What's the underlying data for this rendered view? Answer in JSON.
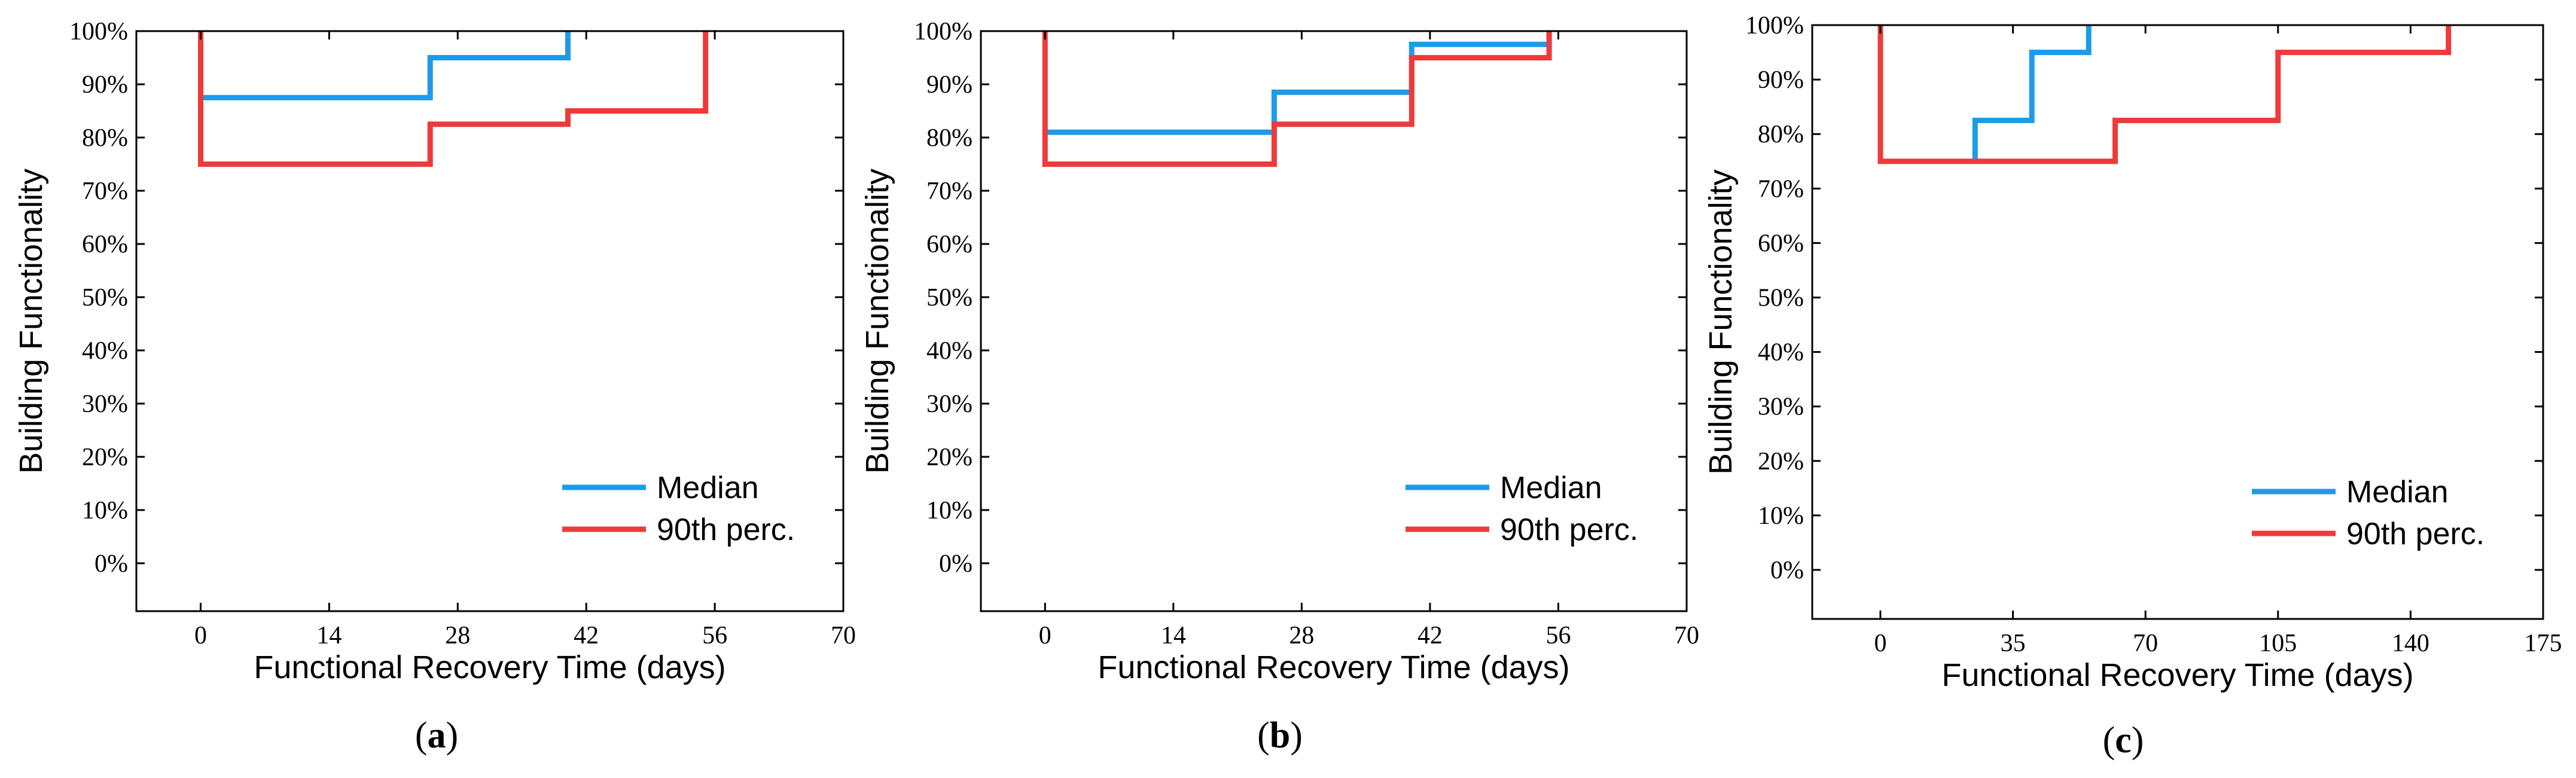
{
  "chart_data": [
    {
      "type": "line",
      "panel_label": "(a)",
      "panel_letter": "a",
      "xlabel": "Functional Recovery Time (days)",
      "ylabel": "Building Functionality",
      "xlim": [
        -7,
        70
      ],
      "ylim": [
        -9,
        100
      ],
      "xticks": [
        "0",
        "14",
        "28",
        "42",
        "56",
        "70"
      ],
      "xtick_values": [
        0,
        14,
        28,
        42,
        56,
        70
      ],
      "yticks": [
        "0%",
        "10%",
        "20%",
        "30%",
        "40%",
        "50%",
        "60%",
        "70%",
        "80%",
        "90%",
        "100%"
      ],
      "ytick_values": [
        0,
        10,
        20,
        30,
        40,
        50,
        60,
        70,
        80,
        90,
        100
      ],
      "legend_position": "bottom-right",
      "series": [
        {
          "name": "Median",
          "color": "#1e9be8",
          "x": [
            0,
            0,
            25,
            25,
            40,
            40
          ],
          "y": [
            100,
            87.5,
            87.5,
            95,
            95,
            100
          ]
        },
        {
          "name": "90th perc.",
          "color": "#ee3a3a",
          "x": [
            0,
            0,
            25,
            25,
            40,
            40,
            55,
            55
          ],
          "y": [
            100,
            75,
            75,
            82.5,
            82.5,
            85,
            85,
            100
          ]
        }
      ]
    },
    {
      "type": "line",
      "panel_label": "(b)",
      "panel_letter": "b",
      "xlabel": "Functional Recovery Time (days)",
      "ylabel": "Building Functionality",
      "xlim": [
        -7,
        70
      ],
      "ylim": [
        -9,
        100
      ],
      "xticks": [
        "0",
        "14",
        "28",
        "42",
        "56",
        "70"
      ],
      "xtick_values": [
        0,
        14,
        28,
        42,
        56,
        70
      ],
      "yticks": [
        "0%",
        "10%",
        "20%",
        "30%",
        "40%",
        "50%",
        "60%",
        "70%",
        "80%",
        "90%",
        "100%"
      ],
      "ytick_values": [
        0,
        10,
        20,
        30,
        40,
        50,
        60,
        70,
        80,
        90,
        100
      ],
      "legend_position": "bottom-right",
      "series": [
        {
          "name": "Median",
          "color": "#1e9be8",
          "x": [
            0,
            25,
            25,
            40,
            40,
            55,
            55
          ],
          "y": [
            81,
            81,
            88.5,
            88.5,
            97.5,
            97.5,
            100
          ]
        },
        {
          "name": "90th perc.",
          "color": "#ee3a3a",
          "x": [
            0,
            0,
            25,
            25,
            40,
            40,
            55,
            55
          ],
          "y": [
            100,
            75,
            75,
            82.5,
            82.5,
            95,
            95,
            100
          ]
        }
      ]
    },
    {
      "type": "line",
      "panel_label": "(c)",
      "panel_letter": "c",
      "xlabel": "Functional Recovery Time (days)",
      "ylabel": "Building Functionality",
      "xlim": [
        -18,
        175
      ],
      "ylim": [
        -9,
        100
      ],
      "xticks": [
        "0",
        "35",
        "70",
        "105",
        "140",
        "175"
      ],
      "xtick_values": [
        0,
        35,
        70,
        105,
        140,
        175
      ],
      "yticks": [
        "0%",
        "10%",
        "20%",
        "30%",
        "40%",
        "50%",
        "60%",
        "70%",
        "80%",
        "90%",
        "100%"
      ],
      "ytick_values": [
        0,
        10,
        20,
        30,
        40,
        50,
        60,
        70,
        80,
        90,
        100
      ],
      "legend_position": "bottom-right",
      "series": [
        {
          "name": "Median",
          "color": "#1e9be8",
          "x": [
            25,
            25,
            40,
            40,
            55,
            55
          ],
          "y": [
            75,
            82.5,
            82.5,
            95,
            95,
            100
          ]
        },
        {
          "name": "90th perc.",
          "color": "#ee3a3a",
          "x": [
            0,
            0,
            62,
            62,
            105,
            105,
            150,
            150
          ],
          "y": [
            100,
            75,
            75,
            82.5,
            82.5,
            95,
            95,
            100
          ]
        }
      ]
    }
  ]
}
